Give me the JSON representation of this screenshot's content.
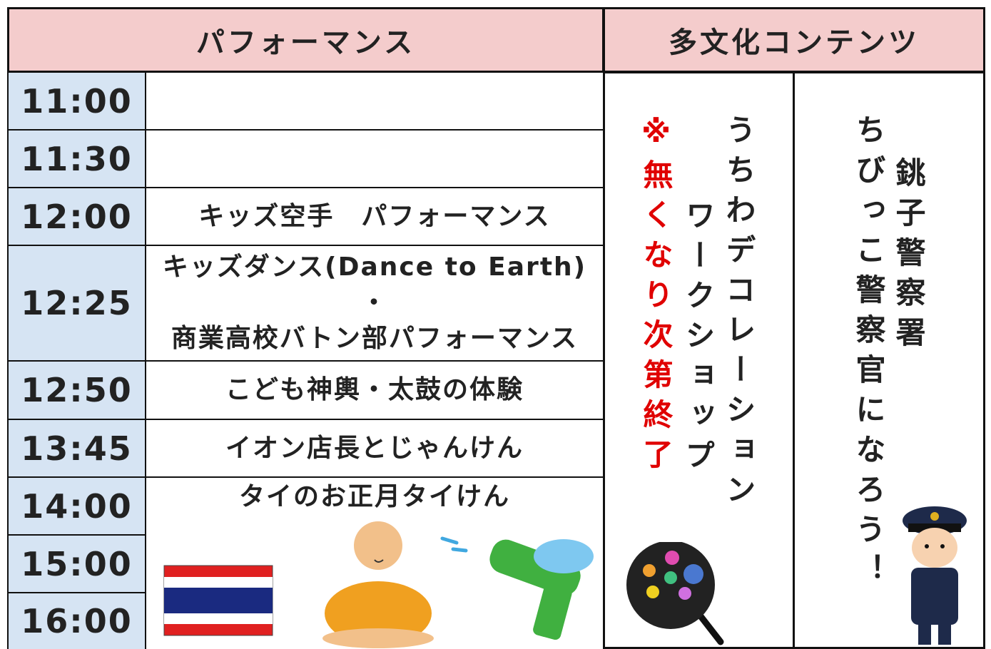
{
  "header": {
    "performance": "パフォーマンス",
    "multicultural": "多文化コンテンツ"
  },
  "schedule": {
    "times": [
      "11:00",
      "11:30",
      "12:00",
      "12:25",
      "12:50",
      "13:45",
      "14:00",
      "15:00",
      "16:00"
    ],
    "events": [
      {
        "lines": []
      },
      {
        "lines": []
      },
      {
        "lines": [
          "キッズ空手　パフォーマンス"
        ]
      },
      {
        "lines": [
          "キッズダンス(Dance to Earth)",
          "・",
          "商業高校バトン部パフォーマンス"
        ]
      },
      {
        "lines": [
          "こども神輿・太鼓の体験"
        ]
      },
      {
        "lines": [
          "イオン店長とじゃんけん"
        ]
      },
      {
        "lines": [
          "タイのお正月タイけん"
        ]
      }
    ]
  },
  "workshop": {
    "lines": [
      "うちわデコレーション",
      "ワークショップ"
    ],
    "note": "※無くなり次第終了"
  },
  "police": {
    "organizer": "銚子警察署",
    "title": "ちびっこ警察官になろう！"
  }
}
